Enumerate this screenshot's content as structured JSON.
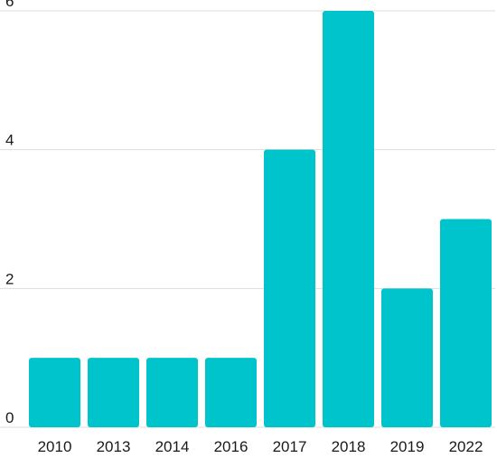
{
  "chart_data": {
    "type": "bar",
    "title": "",
    "xlabel": "",
    "ylabel": "",
    "categories": [
      "2010",
      "2013",
      "2014",
      "2016",
      "2017",
      "2018",
      "2019",
      "2022"
    ],
    "values": [
      1,
      1,
      1,
      1,
      4,
      6,
      2,
      3
    ],
    "ylim": [
      0,
      6
    ],
    "yticks": [
      0,
      2,
      4,
      6
    ],
    "grid": true,
    "legend": "none",
    "bar_color": "#00c4cc",
    "grid_color": "#dddddd"
  }
}
